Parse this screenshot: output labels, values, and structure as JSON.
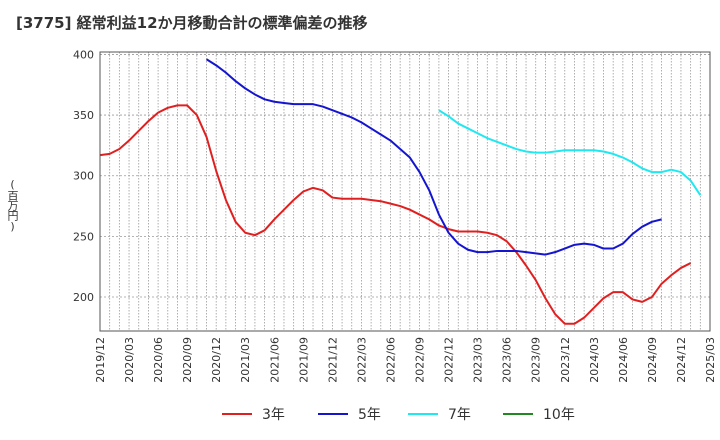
{
  "chart_data": {
    "type": "line",
    "title": "[3775]  経常利益12か月移動合計の標準偏差の推移",
    "ylabel": "(百万円)",
    "xlabel": "",
    "ylim": [
      172,
      402
    ],
    "yticks": [
      200,
      250,
      300,
      350,
      400
    ],
    "xticks": [
      "2019/12",
      "2020/03",
      "2020/06",
      "2020/09",
      "2020/12",
      "2021/03",
      "2021/06",
      "2021/09",
      "2021/12",
      "2022/03",
      "2022/06",
      "2022/09",
      "2022/12",
      "2023/03",
      "2023/06",
      "2023/09",
      "2023/12",
      "2024/03",
      "2024/06",
      "2024/09",
      "2024/12",
      "2025/03"
    ],
    "grid": true,
    "legend_position": "bottom",
    "series": [
      {
        "name": "3年",
        "color": "#e02020",
        "start": "2019/12",
        "values": [
          317,
          318,
          322,
          329,
          337,
          345,
          352,
          356,
          358,
          358,
          350,
          332,
          304,
          280,
          262,
          253,
          251,
          255,
          264,
          272,
          280,
          287,
          290,
          288,
          282,
          281,
          281,
          281,
          280,
          279,
          277,
          275,
          272,
          268,
          264,
          259,
          256,
          254,
          254,
          254,
          253,
          251,
          246,
          237,
          226,
          214,
          199,
          186,
          178,
          178,
          183,
          191,
          199,
          204,
          204,
          198,
          196,
          200,
          211,
          218,
          224,
          228
        ]
      },
      {
        "name": "5年",
        "color": "#1515d0",
        "start": "2020/11",
        "values": [
          396,
          391,
          385,
          378,
          372,
          367,
          363,
          361,
          360,
          359,
          359,
          359,
          357,
          354,
          351,
          348,
          344,
          339,
          334,
          329,
          322,
          315,
          303,
          288,
          268,
          253,
          244,
          239,
          237,
          237,
          238,
          238,
          238,
          237,
          236,
          235,
          237,
          240,
          243,
          244,
          243,
          240,
          240,
          244,
          252,
          258,
          262,
          264
        ]
      },
      {
        "name": "7年",
        "color": "#20e8f0",
        "start": "2022/11",
        "values": [
          354,
          349,
          343,
          339,
          335,
          331,
          328,
          325,
          322,
          320,
          319,
          319,
          320,
          321,
          321,
          321,
          321,
          320,
          318,
          315,
          311,
          306,
          303,
          303,
          305,
          303,
          296,
          284
        ]
      },
      {
        "name": "10年",
        "color": "#228822",
        "start": "",
        "values": []
      }
    ]
  }
}
